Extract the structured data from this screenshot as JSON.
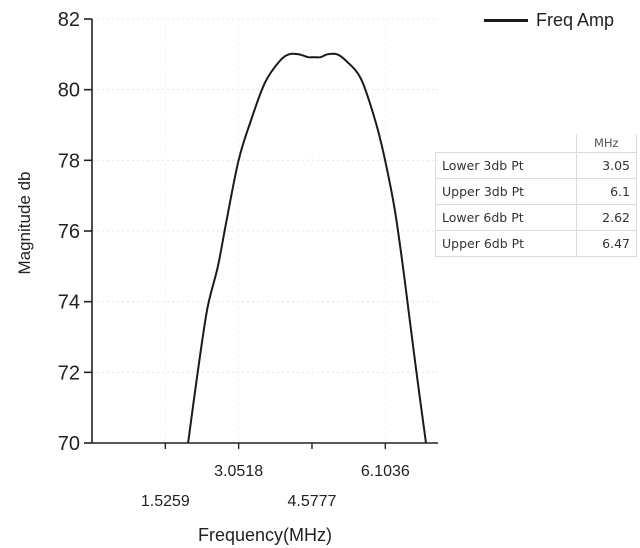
{
  "chart_data": {
    "type": "line",
    "xlabel": "Frequency(MHz)",
    "ylabel": "Magnitude db",
    "xlim": [
      0,
      7.2
    ],
    "ylim": [
      70,
      82
    ],
    "x_ticks": [
      1.5259,
      3.0518,
      4.5777,
      6.1036
    ],
    "x_tick_labels": [
      "1.5259",
      "3.0518",
      "4.5777",
      "6.1036"
    ],
    "y_ticks": [
      70,
      72,
      74,
      76,
      78,
      80,
      82
    ],
    "series": [
      {
        "name": "Freq Amp",
        "color": "#1a1a1a",
        "x": [
          2.0,
          2.2,
          2.4,
          2.62,
          2.8,
          3.05,
          3.3,
          3.6,
          3.9,
          4.1,
          4.3,
          4.5,
          4.6,
          4.75,
          4.9,
          5.1,
          5.3,
          5.6,
          5.9,
          6.1,
          6.3,
          6.47,
          6.6,
          6.8,
          6.95
        ],
        "y": [
          70.0,
          72.0,
          73.8,
          75.0,
          76.3,
          78.0,
          79.1,
          80.2,
          80.8,
          81.0,
          81.0,
          80.92,
          80.92,
          80.92,
          81.0,
          81.0,
          80.8,
          80.3,
          79.1,
          78.0,
          76.6,
          75.0,
          73.6,
          71.5,
          70.0
        ]
      }
    ],
    "legend": {
      "label": "Freq Amp",
      "position": "top-right"
    },
    "grid": false
  },
  "cutoff_table": {
    "unit_header": "MHz",
    "rows": [
      {
        "label": "Lower 3db Pt",
        "value": "3.05"
      },
      {
        "label": "Upper 3db Pt",
        "value": "6.1"
      },
      {
        "label": "Lower 6db Pt",
        "value": "2.62"
      },
      {
        "label": "Upper 6db Pt",
        "value": "6.47"
      }
    ]
  }
}
